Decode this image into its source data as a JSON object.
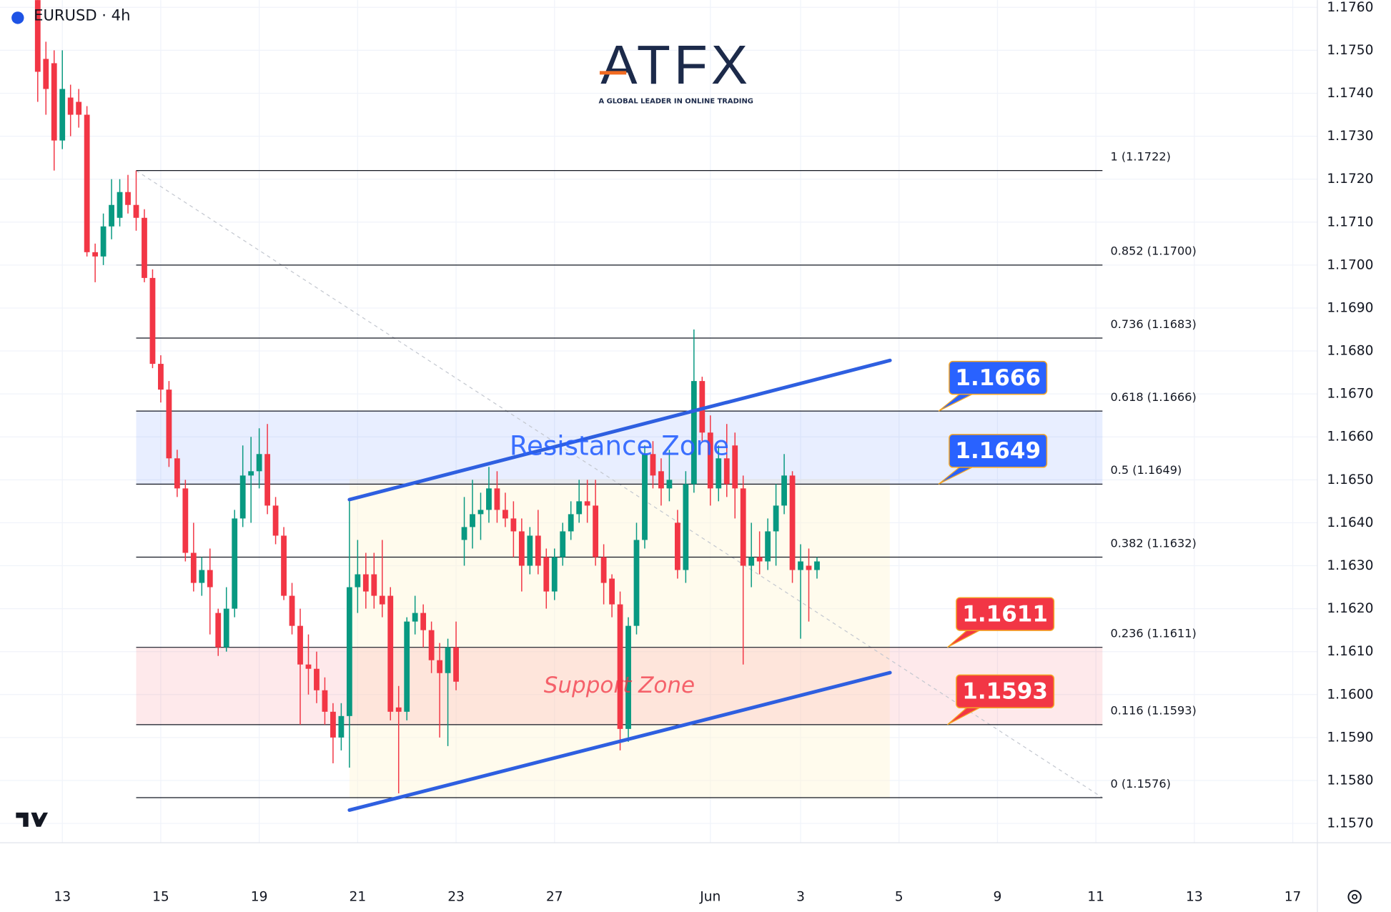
{
  "chart_data": {
    "type": "candlestick",
    "header": "EURUSD · 4h",
    "logo": {
      "name": "ATFX",
      "tagline": "A GLOBAL LEADER IN ONLINE TRADING"
    },
    "x": [
      -3,
      -2,
      -1,
      0,
      1,
      2,
      3,
      4,
      5,
      6,
      7,
      8,
      9,
      10,
      11,
      12,
      13,
      14,
      15,
      16,
      17,
      18,
      19,
      20,
      21,
      22,
      23,
      24,
      25,
      26,
      27,
      28,
      29,
      30,
      31,
      32,
      33,
      34,
      35,
      36,
      37,
      38,
      39,
      40,
      41,
      42,
      43,
      44,
      45,
      46,
      47,
      48,
      49,
      50,
      51,
      52,
      53,
      54,
      55,
      56,
      57,
      58,
      59,
      60,
      61,
      62,
      63,
      64,
      65,
      66,
      67,
      68,
      69,
      70,
      71,
      72,
      73,
      74,
      75,
      76,
      77,
      78,
      79,
      80,
      81,
      82,
      83,
      84,
      85,
      86,
      87,
      88,
      89,
      90,
      91,
      92
    ],
    "open": [
      1.1762,
      1.1748,
      1.1747,
      1.1729,
      1.1739,
      1.1738,
      1.1735,
      1.1703,
      1.1702,
      1.1709,
      1.1711,
      1.1717,
      1.1714,
      1.1711,
      1.1697,
      1.1677,
      1.1671,
      1.1655,
      1.1648,
      1.1633,
      1.1626,
      1.1629,
      1.1619,
      1.1611,
      1.162,
      1.1641,
      1.1651,
      1.1652,
      1.1656,
      1.1644,
      1.1637,
      1.1623,
      1.1616,
      1.1607,
      1.1606,
      1.1601,
      1.1596,
      1.159,
      1.1595,
      1.1625,
      1.1628,
      1.1628,
      1.1623,
      1.1623,
      1.1597,
      1.1596,
      1.1617,
      1.1619,
      1.1615,
      1.1608,
      1.1605,
      1.1611,
      1.1636,
      1.1639,
      1.1642,
      1.1643,
      1.1648,
      1.1643,
      1.1641,
      1.1638,
      1.163,
      1.1637,
      1.1632,
      1.1624,
      1.1632,
      1.1638,
      1.1642,
      1.1645,
      1.1644,
      1.1632,
      1.1627,
      1.1621,
      1.1592,
      1.1616,
      1.1636,
      1.1656,
      1.1652,
      1.1648,
      1.164,
      1.1629,
      1.1649,
      1.1673,
      1.1661,
      1.1648,
      1.1655,
      1.1658,
      1.1648,
      1.163,
      1.1632,
      1.1631,
      1.1638,
      1.1644,
      1.1651,
      1.1629,
      1.163,
      1.1629
    ],
    "high": [
      1.1765,
      1.1752,
      1.175,
      1.175,
      1.1742,
      1.1741,
      1.1737,
      1.1705,
      1.1712,
      1.172,
      1.172,
      1.1721,
      1.1722,
      1.1713,
      1.1699,
      1.1679,
      1.1673,
      1.1657,
      1.165,
      1.164,
      1.1632,
      1.1634,
      1.162,
      1.1625,
      1.1643,
      1.1658,
      1.166,
      1.1662,
      1.1663,
      1.1646,
      1.1639,
      1.1626,
      1.162,
      1.1614,
      1.161,
      1.1604,
      1.1598,
      1.1598,
      1.1645,
      1.1636,
      1.1633,
      1.1633,
      1.1636,
      1.1625,
      1.1602,
      1.1618,
      1.1623,
      1.1621,
      1.1617,
      1.1612,
      1.1613,
      1.1617,
      1.1646,
      1.165,
      1.1647,
      1.1653,
      1.1652,
      1.1647,
      1.1645,
      1.1641,
      1.1639,
      1.1643,
      1.1634,
      1.1634,
      1.164,
      1.1645,
      1.165,
      1.165,
      1.165,
      1.1635,
      1.1628,
      1.1624,
      1.1618,
      1.164,
      1.1658,
      1.1659,
      1.1655,
      1.1657,
      1.1643,
      1.1652,
      1.1685,
      1.1674,
      1.1665,
      1.1658,
      1.1663,
      1.1661,
      1.1651,
      1.164,
      1.1638,
      1.1641,
      1.1649,
      1.1656,
      1.1652,
      1.1635,
      1.1634,
      1.1632
    ],
    "low": [
      1.1738,
      1.1735,
      1.1722,
      1.1727,
      1.173,
      1.1732,
      1.1702,
      1.1696,
      1.17,
      1.1706,
      1.1709,
      1.1712,
      1.1708,
      1.1696,
      1.1676,
      1.1668,
      1.1653,
      1.1646,
      1.1631,
      1.1624,
      1.1623,
      1.1614,
      1.1609,
      1.161,
      1.1618,
      1.1639,
      1.164,
      1.1648,
      1.1642,
      1.1635,
      1.1622,
      1.1614,
      1.1593,
      1.16,
      1.1598,
      1.1593,
      1.1584,
      1.1587,
      1.1583,
      1.1619,
      1.162,
      1.162,
      1.1618,
      1.1594,
      1.1577,
      1.1594,
      1.1614,
      1.1611,
      1.1605,
      1.159,
      1.1588,
      1.1601,
      1.163,
      1.1634,
      1.1636,
      1.164,
      1.164,
      1.1639,
      1.1632,
      1.1624,
      1.1628,
      1.1628,
      1.162,
      1.1622,
      1.163,
      1.1636,
      1.164,
      1.164,
      1.163,
      1.1621,
      1.1618,
      1.1587,
      1.1589,
      1.1614,
      1.1634,
      1.1648,
      1.1644,
      1.1645,
      1.1627,
      1.1626,
      1.1647,
      1.1659,
      1.1644,
      1.1645,
      1.1646,
      1.1641,
      1.1607,
      1.1625,
      1.1628,
      1.1629,
      1.163,
      1.1642,
      1.1626,
      1.1613,
      1.1617,
      1.1627
    ],
    "close": [
      1.1745,
      1.1741,
      1.1729,
      1.1741,
      1.1735,
      1.1735,
      1.1703,
      1.1702,
      1.1709,
      1.1714,
      1.1717,
      1.1714,
      1.1711,
      1.1697,
      1.1677,
      1.1671,
      1.1655,
      1.1648,
      1.1633,
      1.1626,
      1.1629,
      1.1625,
      1.1611,
      1.162,
      1.1641,
      1.1651,
      1.1652,
      1.1656,
      1.1644,
      1.1637,
      1.1623,
      1.1616,
      1.1607,
      1.1606,
      1.1601,
      1.1596,
      1.159,
      1.1595,
      1.1625,
      1.1628,
      1.1624,
      1.1623,
      1.1621,
      1.1596,
      1.1596,
      1.1617,
      1.1619,
      1.1615,
      1.1608,
      1.1605,
      1.1611,
      1.1603,
      1.1639,
      1.1642,
      1.1643,
      1.1648,
      1.1643,
      1.1641,
      1.1638,
      1.163,
      1.1637,
      1.163,
      1.1624,
      1.1632,
      1.1638,
      1.1642,
      1.1645,
      1.1644,
      1.1632,
      1.1626,
      1.1621,
      1.1592,
      1.1616,
      1.1636,
      1.1656,
      1.1651,
      1.1648,
      1.165,
      1.1629,
      1.1649,
      1.1673,
      1.1661,
      1.1648,
      1.1655,
      1.1649,
      1.1648,
      1.163,
      1.1632,
      1.1631,
      1.1638,
      1.1644,
      1.1651,
      1.1629,
      1.1631,
      1.1629,
      1.1631
    ],
    "up_color": "#089981",
    "down_color": "#f23645",
    "xlim": [
      -7.6,
      153
    ],
    "xticks": [
      {
        "value": 0,
        "label": "13"
      },
      {
        "value": 12,
        "label": "15"
      },
      {
        "value": 24,
        "label": "19"
      },
      {
        "value": 36,
        "label": "21"
      },
      {
        "value": 48,
        "label": "23"
      },
      {
        "value": 60,
        "label": "27"
      },
      {
        "value": 79,
        "label": "Jun"
      },
      {
        "value": 90,
        "label": "3"
      },
      {
        "value": 102,
        "label": "5"
      },
      {
        "value": 114,
        "label": "9"
      },
      {
        "value": 126,
        "label": "11"
      },
      {
        "value": 138,
        "label": "13"
      },
      {
        "value": 150,
        "label": "17"
      }
    ],
    "ylim": [
      1.15655,
      1.17617
    ],
    "yticks": [
      {
        "value": 1.157,
        "label": "1.1570"
      },
      {
        "value": 1.158,
        "label": "1.1580"
      },
      {
        "value": 1.159,
        "label": "1.1590"
      },
      {
        "value": 1.16,
        "label": "1.1600"
      },
      {
        "value": 1.161,
        "label": "1.1610"
      },
      {
        "value": 1.162,
        "label": "1.1620"
      },
      {
        "value": 1.163,
        "label": "1.1630"
      },
      {
        "value": 1.164,
        "label": "1.1640"
      },
      {
        "value": 1.165,
        "label": "1.1650"
      },
      {
        "value": 1.166,
        "label": "1.1660"
      },
      {
        "value": 1.167,
        "label": "1.1670"
      },
      {
        "value": 1.168,
        "label": "1.1680"
      },
      {
        "value": 1.169,
        "label": "1.1690"
      },
      {
        "value": 1.17,
        "label": "1.1700"
      },
      {
        "value": 1.171,
        "label": "1.1710"
      },
      {
        "value": 1.172,
        "label": "1.1720"
      },
      {
        "value": 1.173,
        "label": "1.1730"
      },
      {
        "value": 1.174,
        "label": "1.1740"
      },
      {
        "value": 1.175,
        "label": "1.1750"
      },
      {
        "value": 1.176,
        "label": "1.1760"
      }
    ],
    "grid": true,
    "fib_x": [
      9,
      126.8
    ],
    "fib_levels": [
      {
        "value": 1.1722,
        "label": "1 (1.1722)"
      },
      {
        "value": 1.17,
        "label": "0.852 (1.1700)"
      },
      {
        "value": 1.1683,
        "label": "0.736 (1.1683)"
      },
      {
        "value": 1.1666,
        "label": "0.618 (1.1666)"
      },
      {
        "value": 1.1649,
        "label": "0.5 (1.1649)"
      },
      {
        "value": 1.1632,
        "label": "0.382 (1.1632)"
      },
      {
        "value": 1.1611,
        "label": "0.236 (1.1611)"
      },
      {
        "value": 1.1593,
        "label": "0.116 (1.1593)"
      },
      {
        "value": 1.1576,
        "label": "0 (1.1576)"
      }
    ],
    "fib_trend": {
      "x": [
        9,
        126.8
      ],
      "y": [
        1.1722,
        1.1576
      ]
    },
    "zones": [
      {
        "name": "Resistance Zone",
        "from": 1.1649,
        "to": 1.1666,
        "color": "#2962ff"
      },
      {
        "name": "Support Zone",
        "from": 1.1593,
        "to": 1.1611,
        "color": "#f23645"
      }
    ],
    "channels": [
      {
        "x": [
          35,
          100.9
        ],
        "y": [
          1.16454,
          1.16778
        ],
        "color": "#2e5fe0"
      },
      {
        "x": [
          35,
          100.9
        ],
        "y": [
          1.15731,
          1.16051
        ],
        "color": "#2e5fe0"
      }
    ],
    "callouts": {
      "values": [
        1.1666,
        1.1649,
        1.1611,
        1.1593
      ],
      "colors": [
        "#2962ff",
        "#2962ff",
        "#f23645",
        "#f23645"
      ]
    }
  }
}
